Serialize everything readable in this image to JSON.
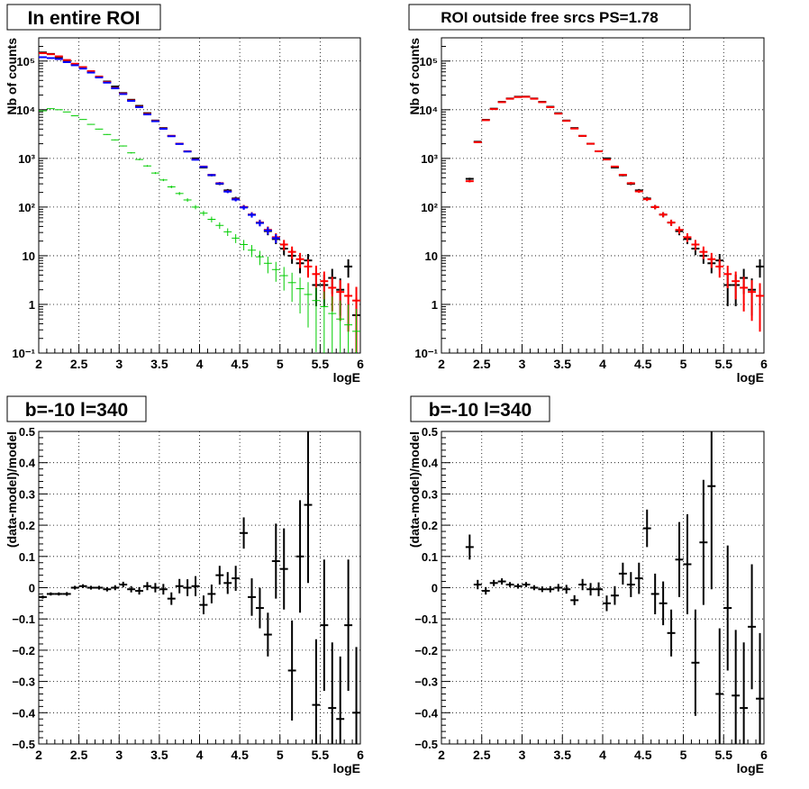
{
  "chart_data": [
    {
      "type": "scatter",
      "title": "In entire ROI",
      "xlabel": "logE",
      "ylabel": "Nb of counts",
      "xlim": [
        2,
        6
      ],
      "ylim": [
        0.1,
        300000
      ],
      "yscale": "log",
      "grid": true,
      "x_ticks": [
        "2",
        "2.5",
        "3",
        "3.5",
        "4",
        "4.5",
        "5",
        "5.5",
        "6"
      ],
      "y_ticks": [
        "10⁻¹",
        "1",
        "10",
        "10²",
        "10³",
        "10⁴",
        "10⁵"
      ],
      "series": [
        {
          "color": "#000000",
          "x": [
            2.05,
            2.15,
            2.25,
            2.35,
            2.45,
            2.55,
            2.65,
            2.75,
            2.85,
            2.95,
            3.05,
            3.15,
            3.25,
            3.35,
            3.45,
            3.55,
            3.65,
            3.75,
            3.85,
            3.95,
            4.05,
            4.15,
            4.25,
            4.35,
            4.45,
            4.55,
            4.65,
            4.75,
            4.85,
            4.95,
            5.05,
            5.15,
            5.25,
            5.35,
            5.45,
            5.55,
            5.65,
            5.75,
            5.85,
            5.95
          ],
          "y": [
            150000,
            140000,
            120000,
            100000,
            85000,
            75000,
            60000,
            48000,
            38000,
            30000,
            22000,
            16000,
            12000,
            8500,
            6000,
            4200,
            2900,
            2000,
            1400,
            1000,
            650,
            450,
            300,
            220,
            150,
            100,
            70,
            48,
            32,
            22,
            14,
            10,
            7,
            8,
            2.5,
            2.5,
            3.5,
            2.0,
            6.0,
            0.6
          ]
        },
        {
          "color": "#ff0000",
          "x": [
            2.05,
            2.15,
            2.25,
            2.35,
            2.45,
            2.55,
            2.65,
            2.75,
            2.85,
            2.95,
            3.05,
            3.15,
            3.25,
            3.35,
            3.45,
            3.55,
            3.65,
            3.75,
            3.85,
            3.95,
            4.05,
            4.15,
            4.25,
            4.35,
            4.45,
            4.55,
            4.65,
            4.75,
            4.85,
            4.95,
            5.05,
            5.15,
            5.25,
            5.35,
            5.45,
            5.55,
            5.65,
            5.75,
            5.85,
            5.95
          ],
          "y": [
            145000,
            138000,
            125000,
            105000,
            88000,
            75000,
            62000,
            48000,
            37000,
            28000,
            21500,
            15500,
            11500,
            8200,
            5900,
            4100,
            2900,
            2000,
            1400,
            950,
            680,
            460,
            310,
            210,
            145,
            100,
            70,
            48,
            34,
            24,
            17,
            12,
            8.5,
            6,
            4.2,
            3,
            2.2,
            1.8,
            1.5,
            1.2
          ]
        },
        {
          "color": "#0000ff",
          "x": [
            2.05,
            2.15,
            2.25,
            2.35,
            2.45,
            2.55,
            2.65,
            2.75,
            2.85,
            2.95,
            3.05,
            3.15,
            3.25,
            3.35,
            3.45,
            3.55,
            3.65,
            3.75,
            3.85,
            3.95,
            4.05,
            4.15,
            4.25,
            4.35,
            4.45,
            4.55,
            4.65,
            4.75,
            4.85,
            4.95
          ],
          "y": [
            120000,
            115000,
            110000,
            95000,
            82000,
            70000,
            58000,
            46000,
            36000,
            27500,
            21000,
            15200,
            11300,
            8000,
            5800,
            4050,
            2850,
            1980,
            1380,
            940,
            670,
            455,
            305,
            208,
            143,
            98,
            69,
            47,
            33,
            23
          ]
        },
        {
          "color": "#00cc00",
          "x": [
            2.05,
            2.15,
            2.25,
            2.35,
            2.45,
            2.55,
            2.65,
            2.75,
            2.85,
            2.95,
            3.05,
            3.15,
            3.25,
            3.35,
            3.45,
            3.55,
            3.65,
            3.75,
            3.85,
            3.95,
            4.05,
            4.15,
            4.25,
            4.35,
            4.45,
            4.55,
            4.65,
            4.75,
            4.85,
            4.95,
            5.05,
            5.15,
            5.25,
            5.35,
            5.45,
            5.55,
            5.65,
            5.75,
            5.85,
            5.95
          ],
          "y": [
            9500,
            10500,
            10000,
            9000,
            7500,
            6300,
            5000,
            4000,
            3100,
            2400,
            1800,
            1300,
            950,
            700,
            500,
            360,
            260,
            190,
            140,
            100,
            75,
            56,
            42,
            31,
            23,
            17,
            13,
            9.5,
            7,
            5.2,
            3.9,
            2.8,
            2.1,
            1.6,
            1.2,
            0.9,
            0.65,
            0.5,
            0.38,
            0.28
          ]
        }
      ]
    },
    {
      "type": "scatter",
      "title": "ROI outside free srcs PS=1.78",
      "xlabel": "logE",
      "ylabel": "Nb of counts",
      "xlim": [
        2,
        6
      ],
      "ylim": [
        0.1,
        300000
      ],
      "yscale": "log",
      "grid": true,
      "x_ticks": [
        "2",
        "2.5",
        "3",
        "3.5",
        "4",
        "4.5",
        "5",
        "5.5",
        "6"
      ],
      "y_ticks": [
        "10⁻¹",
        "1",
        "10",
        "10²",
        "10³",
        "10⁴",
        "10⁵"
      ],
      "series": [
        {
          "color": "#000000",
          "x": [
            2.35,
            2.45,
            2.55,
            2.65,
            2.75,
            2.85,
            2.95,
            3.05,
            3.15,
            3.25,
            3.35,
            3.45,
            3.55,
            3.65,
            3.75,
            3.85,
            3.95,
            4.05,
            4.15,
            4.25,
            4.35,
            4.45,
            4.55,
            4.65,
            4.75,
            4.85,
            4.95,
            5.05,
            5.15,
            5.25,
            5.35,
            5.45,
            5.55,
            5.65,
            5.75,
            5.85,
            5.95
          ],
          "y": [
            380,
            2200,
            6200,
            10500,
            14500,
            17000,
            18500,
            18600,
            17000,
            14500,
            11500,
            8500,
            6000,
            4200,
            2900,
            2000,
            1400,
            1000,
            650,
            450,
            300,
            220,
            150,
            100,
            70,
            48,
            32,
            22,
            14,
            10,
            7,
            8,
            2.5,
            2.5,
            3.5,
            2.0,
            6.0
          ]
        },
        {
          "color": "#ff0000",
          "x": [
            2.35,
            2.45,
            2.55,
            2.65,
            2.75,
            2.85,
            2.95,
            3.05,
            3.15,
            3.25,
            3.35,
            3.45,
            3.55,
            3.65,
            3.75,
            3.85,
            3.95,
            4.05,
            4.15,
            4.25,
            4.35,
            4.45,
            4.55,
            4.65,
            4.75,
            4.85,
            4.95,
            5.05,
            5.15,
            5.25,
            5.35,
            5.45,
            5.55,
            5.65,
            5.75,
            5.85,
            5.95
          ],
          "y": [
            340,
            2150,
            6100,
            10300,
            14300,
            16800,
            18200,
            18400,
            16800,
            14300,
            11300,
            8300,
            5900,
            4100,
            2900,
            2000,
            1400,
            950,
            680,
            460,
            310,
            210,
            145,
            100,
            70,
            48,
            34,
            24,
            17,
            12,
            8.5,
            6,
            4.2,
            3,
            2.2,
            1.8,
            1.5
          ]
        }
      ]
    },
    {
      "type": "scatter",
      "title": "b=-10 l=340",
      "xlabel": "logE",
      "ylabel": "(data-model)/model",
      "xlim": [
        2,
        6
      ],
      "ylim": [
        -0.5,
        0.5
      ],
      "grid": true,
      "x_ticks": [
        "2",
        "2.5",
        "3",
        "3.5",
        "4",
        "4.5",
        "5",
        "5.5",
        "6"
      ],
      "y_ticks": [
        "−0.5",
        "−0.4",
        "−0.3",
        "−0.2",
        "−0.1",
        "0",
        "0.1",
        "0.2",
        "0.3",
        "0.4",
        "0.5"
      ],
      "series": [
        {
          "color": "#000000",
          "x": [
            2.05,
            2.15,
            2.25,
            2.35,
            2.45,
            2.55,
            2.65,
            2.75,
            2.85,
            2.95,
            3.05,
            3.15,
            3.25,
            3.35,
            3.45,
            3.55,
            3.65,
            3.75,
            3.85,
            3.95,
            4.05,
            4.15,
            4.25,
            4.35,
            4.45,
            4.55,
            4.65,
            4.75,
            4.85,
            4.95,
            5.05,
            5.15,
            5.25,
            5.35,
            5.45,
            5.55,
            5.65,
            5.75,
            5.85,
            5.95
          ],
          "y": [
            -0.03,
            -0.02,
            -0.02,
            -0.02,
            0.0,
            0.005,
            0.0,
            0.0,
            -0.005,
            0.0,
            0.01,
            -0.005,
            -0.01,
            0.005,
            0.0,
            -0.005,
            -0.035,
            0.005,
            0.0,
            0.005,
            -0.055,
            -0.02,
            0.04,
            0.015,
            0.03,
            0.175,
            -0.03,
            -0.065,
            -0.15,
            0.085,
            0.06,
            -0.265,
            0.1,
            0.265,
            -0.375,
            -0.12,
            -0.385,
            -0.42,
            -0.12,
            -0.4
          ],
          "err": [
            0.005,
            0.005,
            0.005,
            0.006,
            0.006,
            0.006,
            0.006,
            0.006,
            0.007,
            0.008,
            0.009,
            0.01,
            0.012,
            0.013,
            0.015,
            0.017,
            0.02,
            0.023,
            0.027,
            0.032,
            0.03,
            0.03,
            0.03,
            0.035,
            0.04,
            0.05,
            0.06,
            0.065,
            0.07,
            0.12,
            0.13,
            0.16,
            0.18,
            0.25,
            0.21,
            0.21,
            0.21,
            0.2,
            0.21,
            0.21
          ]
        }
      ]
    },
    {
      "type": "scatter",
      "title": "b=-10 l=340",
      "xlabel": "logE",
      "ylabel": "(data-model)/model",
      "xlim": [
        2,
        6
      ],
      "ylim": [
        -0.5,
        0.5
      ],
      "grid": true,
      "x_ticks": [
        "2",
        "2.5",
        "3",
        "3.5",
        "4",
        "4.5",
        "5",
        "5.5",
        "6"
      ],
      "y_ticks": [
        "−0.5",
        "−0.4",
        "−0.3",
        "−0.2",
        "−0.1",
        "0",
        "0.1",
        "0.2",
        "0.3",
        "0.4",
        "0.5"
      ],
      "series": [
        {
          "color": "#000000",
          "x": [
            2.35,
            2.45,
            2.55,
            2.65,
            2.75,
            2.85,
            2.95,
            3.05,
            3.15,
            3.25,
            3.35,
            3.45,
            3.55,
            3.65,
            3.75,
            3.85,
            3.95,
            4.05,
            4.15,
            4.25,
            4.35,
            4.45,
            4.55,
            4.65,
            4.75,
            4.85,
            4.95,
            5.05,
            5.15,
            5.25,
            5.35,
            5.45,
            5.55,
            5.65,
            5.75,
            5.85,
            5.95
          ],
          "y": [
            0.13,
            0.01,
            -0.01,
            0.015,
            0.02,
            0.01,
            0.005,
            0.01,
            0.0,
            -0.005,
            -0.005,
            0.0,
            -0.005,
            -0.04,
            0.01,
            -0.005,
            -0.005,
            -0.05,
            -0.025,
            0.045,
            0.01,
            0.03,
            0.19,
            -0.02,
            -0.05,
            -0.145,
            0.09,
            0.075,
            -0.24,
            0.145,
            0.325,
            -0.34,
            -0.065,
            -0.345,
            -0.385,
            -0.125,
            -0.355
          ],
          "err": [
            0.04,
            0.015,
            0.012,
            0.01,
            0.01,
            0.008,
            0.008,
            0.008,
            0.008,
            0.009,
            0.01,
            0.012,
            0.014,
            0.016,
            0.018,
            0.02,
            0.022,
            0.025,
            0.03,
            0.035,
            0.04,
            0.05,
            0.06,
            0.065,
            0.07,
            0.075,
            0.12,
            0.16,
            0.17,
            0.2,
            0.33,
            0.21,
            0.2,
            0.21,
            0.21,
            0.2,
            0.21
          ]
        }
      ]
    }
  ]
}
